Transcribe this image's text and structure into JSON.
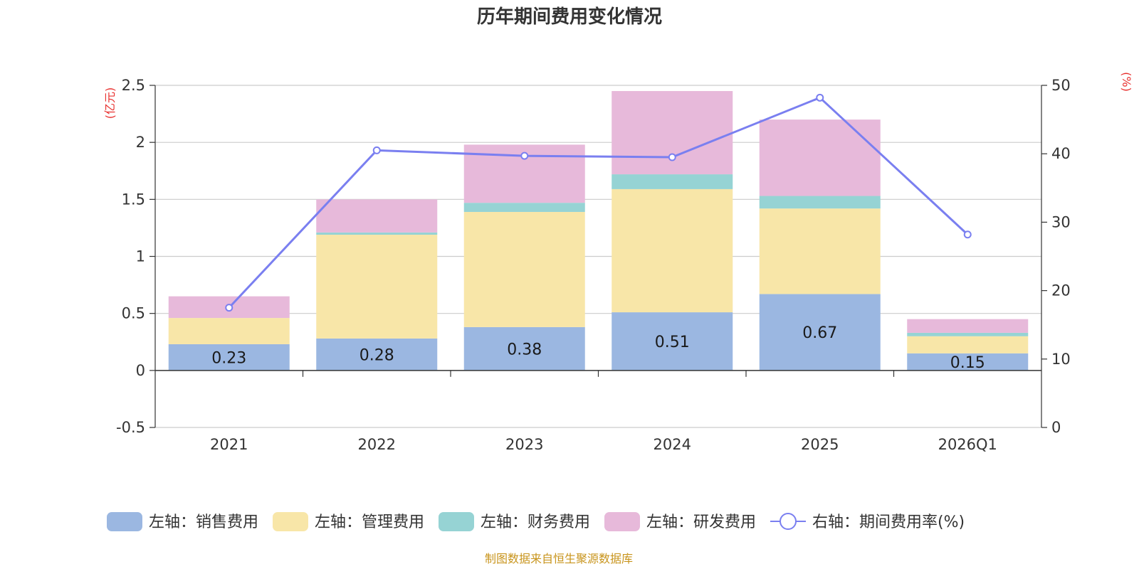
{
  "chart_data": {
    "type": "bar",
    "title": "历年期间费用变化情况",
    "categories": [
      "2021",
      "2022",
      "2023",
      "2024",
      "2025",
      "2026Q1"
    ],
    "left_axis": {
      "unit": "(亿元)",
      "ticks": [
        "-0.5",
        "0",
        "0.5",
        "1",
        "1.5",
        "2",
        "2.5"
      ],
      "ylim": [
        -0.5,
        2.5
      ]
    },
    "right_axis": {
      "unit": "(%)",
      "ticks": [
        "0",
        "10",
        "20",
        "30",
        "40",
        "50"
      ],
      "ylim": [
        0,
        50
      ]
    },
    "series": [
      {
        "name": "销售费用",
        "legend": "左轴：销售费用",
        "axis": "left",
        "kind": "stacked-bar",
        "color": "#9bb7e1",
        "values": [
          0.23,
          0.28,
          0.38,
          0.51,
          0.67,
          0.15
        ],
        "labels": [
          "0.23",
          "0.28",
          "0.38",
          "0.51",
          "0.67",
          "0.15"
        ]
      },
      {
        "name": "管理费用",
        "legend": "左轴：管理费用",
        "axis": "left",
        "kind": "stacked-bar",
        "color": "#f8e6a8",
        "values": [
          0.23,
          0.91,
          1.01,
          1.08,
          0.75,
          0.15
        ]
      },
      {
        "name": "财务费用",
        "legend": "左轴：财务费用",
        "axis": "left",
        "kind": "stacked-bar",
        "color": "#96d3d4",
        "values": [
          0.0,
          0.02,
          0.08,
          0.13,
          0.11,
          0.03
        ]
      },
      {
        "name": "研发费用",
        "legend": "左轴：研发费用",
        "axis": "left",
        "kind": "stacked-bar",
        "color": "#e7b9da",
        "values": [
          0.19,
          0.29,
          0.51,
          0.73,
          0.67,
          0.12
        ]
      },
      {
        "name": "期间费用率(%)",
        "legend": "右轴：期间费用率(%)",
        "axis": "right",
        "kind": "line",
        "color": "#7a7ff0",
        "values": [
          17.5,
          40.5,
          39.7,
          39.5,
          48.2,
          28.2
        ]
      }
    ],
    "legend_position": "bottom",
    "grid": true
  },
  "source_note": "制图数据来自恒生聚源数据库"
}
